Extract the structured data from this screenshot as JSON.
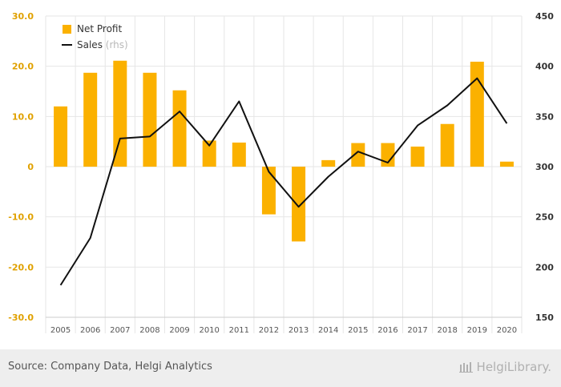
{
  "chart_data": {
    "type": "bar",
    "categories": [
      "2005",
      "2006",
      "2007",
      "2008",
      "2009",
      "2010",
      "2011",
      "2012",
      "2013",
      "2014",
      "2015",
      "2016",
      "2017",
      "2018",
      "2019",
      "2020"
    ],
    "series": [
      {
        "name": "Net Profit",
        "type": "bar",
        "axis": "left",
        "color": "#FBB100",
        "values": [
          12.0,
          18.7,
          21.1,
          18.7,
          15.2,
          5.2,
          4.8,
          -9.5,
          -14.9,
          1.3,
          4.7,
          4.7,
          4.0,
          8.5,
          20.9,
          1.0
        ]
      },
      {
        "name": "Sales",
        "legend_suffix": "(rhs)",
        "type": "line",
        "axis": "right",
        "color": "#111111",
        "values": [
          182,
          229,
          328,
          330,
          355,
          321,
          365,
          295,
          260,
          290,
          315,
          304,
          341,
          361,
          388,
          343
        ]
      }
    ],
    "y_left": {
      "ticks": [
        "30.0",
        "20.0",
        "10.0",
        "0",
        "-10.0",
        "-20.0",
        "-30.0"
      ],
      "range": [
        -30,
        30
      ]
    },
    "y_right": {
      "ticks": [
        "450",
        "400",
        "350",
        "300",
        "250",
        "200",
        "150"
      ],
      "range": [
        150,
        450
      ]
    },
    "grid": true,
    "legend_position": "top-left"
  },
  "footer": {
    "source": "Source: Company Data, Helgi Analytics",
    "logo_text": "HelgiLibrary."
  },
  "colors": {
    "bar": "#FBB100",
    "line": "#111111",
    "left_axis_text": "#E0A100",
    "right_axis_text": "#333333"
  }
}
